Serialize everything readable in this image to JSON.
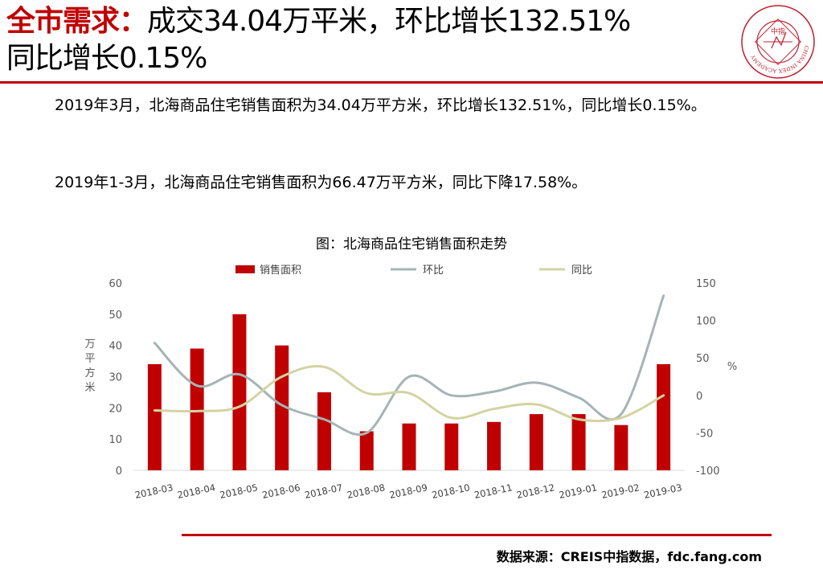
{
  "header": {
    "title_highlight": "全市需求：",
    "title_line1_rest": "成交34.04万平米，环比增长132.51%",
    "title_line2": "同比增长0.15%",
    "logo_text": "中指",
    "logo_ring_text": "CHINA INDEX ACADEMY"
  },
  "body": {
    "para1": "2019年3月，北海商品住宅销售面积为34.04万平方米，环比增长132.51%，同比增长0.15%。",
    "para2": "2019年1-3月，北海商品住宅销售面积为66.47万平方米，同比下降17.58%。"
  },
  "chart_title": "图：北海商品住宅销售面积走势",
  "chart_data": {
    "type": "bar",
    "categories": [
      "2018-03",
      "2018-04",
      "2018-05",
      "2018-06",
      "2018-07",
      "2018-08",
      "2018-09",
      "2018-10",
      "2018-11",
      "2018-12",
      "2019-01",
      "2019-02",
      "2019-03"
    ],
    "series": [
      {
        "name": "销售面积",
        "type": "bar",
        "axis": "left",
        "color": "#c00000",
        "values": [
          34,
          39,
          50,
          40,
          25,
          12.5,
          15,
          15,
          15.5,
          18,
          18,
          14.5,
          34
        ]
      },
      {
        "name": "环比",
        "type": "line",
        "axis": "right",
        "color": "#a5b4b4",
        "values": [
          70,
          13,
          28,
          -13,
          -32,
          -50,
          25,
          0,
          5,
          17,
          -3,
          -25,
          133
        ]
      },
      {
        "name": "同比",
        "type": "line",
        "axis": "right",
        "color": "#d3d3a3",
        "values": [
          -20,
          -21,
          -15,
          25,
          38,
          3,
          3,
          -30,
          -18,
          -12,
          -32,
          -30,
          0
        ]
      }
    ],
    "ylabel": "万平方米",
    "y2label": "%",
    "ylim": [
      0,
      60
    ],
    "y2lim": [
      -100,
      150
    ],
    "yticks": [
      "0",
      "10",
      "20",
      "30",
      "40",
      "50",
      "60"
    ],
    "y2ticks": [
      "-100",
      "-50",
      "0",
      "50",
      "100",
      "150"
    ],
    "legend": "top"
  },
  "footer": {
    "source": "数据来源：CREIS中指数据，fdc.fang.com"
  }
}
